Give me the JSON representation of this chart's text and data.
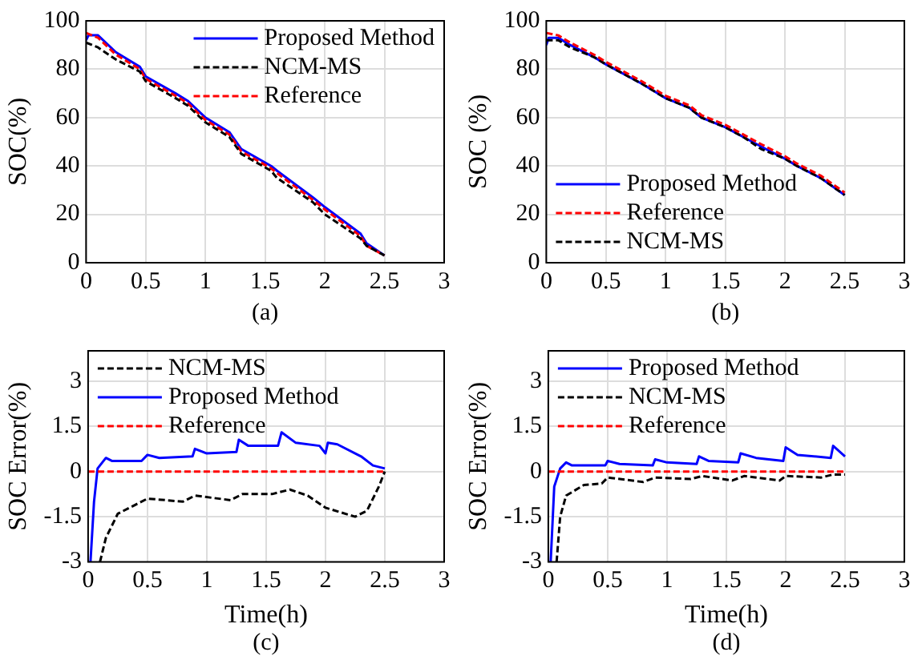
{
  "chart_data": [
    {
      "type": "line",
      "ylabel": "SOC(%)",
      "annotations": [
        "(a)"
      ],
      "xlim": [
        0,
        3
      ],
      "ylim": [
        0,
        100
      ],
      "xticks": [
        0,
        0.5,
        1,
        1.5,
        2,
        2.5,
        3
      ],
      "yticks": [
        0,
        20,
        40,
        60,
        80,
        100
      ],
      "grid": true,
      "legend": "top right",
      "series": [
        {
          "name": "Proposed Method",
          "color": "#0000ff",
          "line_style": "solid",
          "x": [
            0,
            0.02,
            0.1,
            0.25,
            0.45,
            0.5,
            0.75,
            0.85,
            1,
            1.2,
            1.3,
            1.55,
            1.6,
            1.9,
            2,
            2.3,
            2.35,
            2.5
          ],
          "values": [
            92,
            94,
            94,
            87,
            81,
            77,
            70,
            67,
            60,
            54,
            47,
            40,
            38,
            27,
            23,
            12,
            8,
            3
          ]
        },
        {
          "name": "NCM-MS",
          "color": "#000000",
          "line_style": "dashed",
          "x": [
            0,
            0.1,
            0.25,
            0.45,
            0.5,
            0.75,
            0.85,
            1,
            1.2,
            1.3,
            1.55,
            1.6,
            1.9,
            2,
            2.3,
            2.35,
            2.5
          ],
          "values": [
            91,
            89,
            84,
            79,
            75,
            68,
            65,
            58,
            52,
            45,
            38,
            35,
            25,
            20,
            10,
            7,
            3
          ]
        },
        {
          "name": "Reference",
          "color": "#ff0000",
          "line_style": "dashed",
          "x": [
            0,
            0.1,
            0.25,
            0.45,
            0.5,
            0.75,
            0.85,
            1,
            1.2,
            1.3,
            1.55,
            1.6,
            1.9,
            2,
            2.3,
            2.35,
            2.5
          ],
          "values": [
            95,
            93,
            86,
            80,
            76,
            69,
            66,
            59,
            53,
            46,
            39,
            37,
            26,
            22,
            11,
            7,
            3
          ]
        }
      ]
    },
    {
      "type": "line",
      "ylabel": "SOC (%)",
      "annotations": [
        "(b)"
      ],
      "xlim": [
        0,
        3
      ],
      "ylim": [
        0,
        100
      ],
      "xticks": [
        0,
        0.5,
        1,
        1.5,
        2,
        2.5,
        3
      ],
      "yticks": [
        0,
        20,
        40,
        60,
        80,
        100
      ],
      "grid": true,
      "legend": "bottom left",
      "series": [
        {
          "name": "Proposed Method",
          "color": "#0000ff",
          "line_style": "solid",
          "x": [
            0,
            0.02,
            0.1,
            0.2,
            0.4,
            0.5,
            0.8,
            0.9,
            1,
            1.2,
            1.3,
            1.5,
            1.65,
            1.8,
            2,
            2.1,
            2.3,
            2.5
          ],
          "values": [
            90,
            93,
            93,
            90,
            85,
            82,
            74,
            71,
            68,
            64,
            60,
            56,
            52,
            48,
            43,
            40,
            35,
            28
          ]
        },
        {
          "name": "Reference",
          "color": "#ff0000",
          "line_style": "dashed",
          "x": [
            0,
            0.1,
            0.2,
            0.4,
            0.5,
            0.8,
            0.9,
            1,
            1.2,
            1.3,
            1.5,
            1.65,
            1.8,
            2,
            2.1,
            2.3,
            2.5
          ],
          "values": [
            95,
            94,
            91,
            86,
            83,
            75,
            72,
            69,
            65,
            61,
            57,
            53,
            49,
            44,
            41,
            36,
            29
          ]
        },
        {
          "name": "NCM-MS",
          "color": "#000000",
          "line_style": "dashed",
          "x": [
            0,
            0.1,
            0.2,
            0.4,
            0.5,
            0.8,
            0.9,
            1,
            1.2,
            1.3,
            1.5,
            1.65,
            1.8,
            2,
            2.1,
            2.3,
            2.5
          ],
          "values": [
            92,
            92,
            89,
            85,
            82,
            74,
            71,
            68,
            64,
            60,
            56,
            52,
            47,
            43,
            40,
            35,
            28
          ]
        }
      ]
    },
    {
      "type": "line",
      "xlabel": "Time(h)",
      "ylabel": "SOC Error(%)",
      "annotations": [
        "(c)"
      ],
      "xlim": [
        0,
        3
      ],
      "ylim": [
        -3,
        4
      ],
      "xticks": [
        0,
        0.5,
        1,
        1.5,
        2,
        2.5,
        3
      ],
      "yticks": [
        -3,
        -1.5,
        0,
        1.5,
        3
      ],
      "grid": true,
      "legend": "top left",
      "series": [
        {
          "name": "NCM-MS",
          "color": "#000000",
          "line_style": "dashed",
          "x": [
            0.1,
            0.15,
            0.25,
            0.4,
            0.5,
            0.8,
            0.9,
            1.2,
            1.3,
            1.55,
            1.7,
            1.85,
            2,
            2.25,
            2.35,
            2.45,
            2.5
          ],
          "values": [
            -3,
            -2.2,
            -1.4,
            -1.1,
            -0.9,
            -1,
            -0.8,
            -0.95,
            -0.75,
            -0.75,
            -0.6,
            -0.8,
            -1.2,
            -1.5,
            -1.3,
            -0.5,
            0
          ]
        },
        {
          "name": "Proposed Method",
          "color": "#0000ff",
          "line_style": "solid",
          "x": [
            0.02,
            0.05,
            0.08,
            0.15,
            0.2,
            0.45,
            0.5,
            0.6,
            0.88,
            0.9,
            1,
            1.25,
            1.27,
            1.35,
            1.6,
            1.63,
            1.75,
            1.95,
            2,
            2.02,
            2.1,
            2.3,
            2.4,
            2.5
          ],
          "values": [
            -3,
            -1,
            0.1,
            0.45,
            0.35,
            0.35,
            0.55,
            0.45,
            0.5,
            0.75,
            0.6,
            0.65,
            1.05,
            0.85,
            0.85,
            1.3,
            0.95,
            0.85,
            0.6,
            0.95,
            0.9,
            0.5,
            0.2,
            0.1
          ]
        },
        {
          "name": "Reference",
          "color": "#ff0000",
          "line_style": "dashed",
          "x": [
            0,
            2.5
          ],
          "values": [
            0,
            0
          ]
        }
      ]
    },
    {
      "type": "line",
      "xlabel": "Time(h)",
      "ylabel": "SOC Error(%)",
      "annotations": [
        "(d)"
      ],
      "xlim": [
        0,
        3
      ],
      "ylim": [
        -3,
        4
      ],
      "xticks": [
        0,
        0.5,
        1,
        1.5,
        2,
        2.5,
        3
      ],
      "yticks": [
        -3,
        -1.5,
        0,
        1.5,
        3
      ],
      "grid": true,
      "legend": "top left",
      "series": [
        {
          "name": "Proposed Method",
          "color": "#0000ff",
          "line_style": "solid",
          "x": [
            0.02,
            0.05,
            0.1,
            0.15,
            0.2,
            0.48,
            0.5,
            0.6,
            0.88,
            0.9,
            1,
            1.25,
            1.27,
            1.35,
            1.6,
            1.62,
            1.75,
            1.98,
            2,
            2.1,
            2.38,
            2.4,
            2.5
          ],
          "values": [
            -3,
            -0.5,
            0.1,
            0.3,
            0.2,
            0.2,
            0.35,
            0.25,
            0.2,
            0.4,
            0.3,
            0.25,
            0.5,
            0.35,
            0.3,
            0.6,
            0.45,
            0.35,
            0.8,
            0.55,
            0.45,
            0.85,
            0.5
          ]
        },
        {
          "name": "NCM-MS",
          "color": "#000000",
          "line_style": "dashed",
          "x": [
            0.07,
            0.1,
            0.15,
            0.3,
            0.45,
            0.5,
            0.8,
            0.9,
            1.2,
            1.3,
            1.55,
            1.65,
            1.95,
            2,
            2.3,
            2.4,
            2.5
          ],
          "values": [
            -3,
            -1.5,
            -0.8,
            -0.45,
            -0.4,
            -0.2,
            -0.35,
            -0.2,
            -0.25,
            -0.15,
            -0.3,
            -0.15,
            -0.3,
            -0.15,
            -0.2,
            -0.1,
            -0.1
          ]
        },
        {
          "name": "Reference",
          "color": "#ff0000",
          "line_style": "dashed",
          "x": [
            0,
            2.5
          ],
          "values": [
            0,
            0
          ]
        }
      ]
    }
  ]
}
